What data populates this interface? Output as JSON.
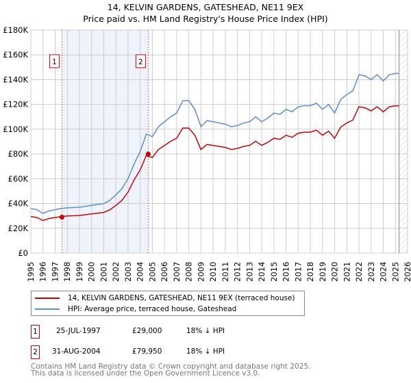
{
  "chart_data": {
    "type": "line",
    "title": "14, KELVIN GARDENS, GATESHEAD, NE11 9EX",
    "subtitle": "Price paid vs. HM Land Registry's House Price Index (HPI)",
    "xlim": [
      1995,
      2026
    ],
    "ylim": [
      0,
      180000
    ],
    "y_ticks": [
      0,
      20000,
      40000,
      60000,
      80000,
      100000,
      120000,
      140000,
      160000,
      180000
    ],
    "y_tick_labels": [
      "£0",
      "£20K",
      "£40K",
      "£60K",
      "£80K",
      "£100K",
      "£120K",
      "£140K",
      "£160K",
      "£180K"
    ],
    "x_ticks": [
      "1995",
      "1996",
      "1997",
      "1998",
      "1999",
      "2000",
      "2001",
      "2002",
      "2003",
      "2004",
      "2005",
      "2006",
      "2007",
      "2008",
      "2009",
      "2010",
      "2011",
      "2012",
      "2013",
      "2014",
      "2015",
      "2016",
      "2017",
      "2018",
      "2019",
      "2020",
      "2021",
      "2022",
      "2023",
      "2024",
      "2025",
      "2026"
    ],
    "grid": true,
    "x": [
      1995,
      1995.5,
      1996,
      1996.5,
      1997,
      1997.5,
      1998,
      1999,
      2000,
      2001,
      2001.5,
      2002,
      2002.5,
      2003,
      2003.5,
      2004,
      2004.5,
      2005,
      2005.5,
      2006,
      2006.5,
      2007,
      2007.5,
      2008,
      2008.5,
      2009,
      2009.5,
      2010,
      2010.5,
      2011,
      2011.5,
      2012,
      2012.5,
      2013,
      2013.5,
      2014,
      2014.5,
      2015,
      2015.5,
      2016,
      2016.5,
      2017,
      2017.5,
      2018,
      2018.5,
      2019,
      2019.5,
      2020,
      2020.5,
      2021,
      2021.5,
      2022,
      2022.5,
      2023,
      2023.5,
      2024,
      2024.5,
      2025,
      2025.3
    ],
    "series": [
      {
        "name": "14, KELVIN GARDENS, GATESHEAD, NE11 9EX (terraced house)",
        "color": "#cc0000",
        "values": [
          29500,
          28700,
          26200,
          27900,
          28700,
          29500,
          29900,
          30300,
          31600,
          32800,
          34900,
          38500,
          42600,
          49200,
          59000,
          67200,
          78700,
          77100,
          83600,
          86900,
          90200,
          92700,
          100900,
          100900,
          95100,
          83600,
          87700,
          86900,
          86100,
          85300,
          83600,
          84500,
          86100,
          86900,
          90200,
          86900,
          89400,
          92700,
          91800,
          95100,
          93500,
          96800,
          97600,
          97600,
          99200,
          95100,
          98400,
          92700,
          101700,
          105000,
          107400,
          118100,
          117300,
          114800,
          118100,
          114000,
          118100,
          118900,
          118900
        ]
      },
      {
        "name": "HPI: Average price, terraced house, Gateshead",
        "color": "#5b8fd4",
        "values": [
          36000,
          35000,
          32000,
          34000,
          35000,
          36000,
          36500,
          37000,
          38500,
          40000,
          42500,
          47000,
          52000,
          60000,
          72000,
          82000,
          96000,
          94000,
          102000,
          106000,
          110000,
          113000,
          123000,
          123000,
          116000,
          102000,
          107000,
          106000,
          105000,
          104000,
          102000,
          103000,
          105000,
          106000,
          110000,
          106000,
          109000,
          113000,
          112000,
          116000,
          114000,
          118000,
          119000,
          119000,
          121000,
          116000,
          120000,
          113000,
          124000,
          128000,
          131000,
          144000,
          143000,
          140000,
          144000,
          139000,
          144000,
          145000,
          145000
        ]
      }
    ],
    "sales": [
      {
        "id": "1",
        "x": 1997.56,
        "date": "25-JUL-1997",
        "price": 29000,
        "price_label": "£29,000",
        "hpi_diff": "18% ↓ HPI"
      },
      {
        "id": "2",
        "x": 2004.66,
        "date": "31-AUG-2004",
        "price": 79950,
        "price_label": "£79,950",
        "hpi_diff": "18% ↓ HPI"
      }
    ],
    "forecast_from": 2025.3,
    "legend_placement": "below"
  },
  "footer": {
    "line1": "Contains HM Land Registry data © Crown copyright and database right 2025.",
    "line2": "This data is licensed under the Open Government Licence v3.0."
  }
}
